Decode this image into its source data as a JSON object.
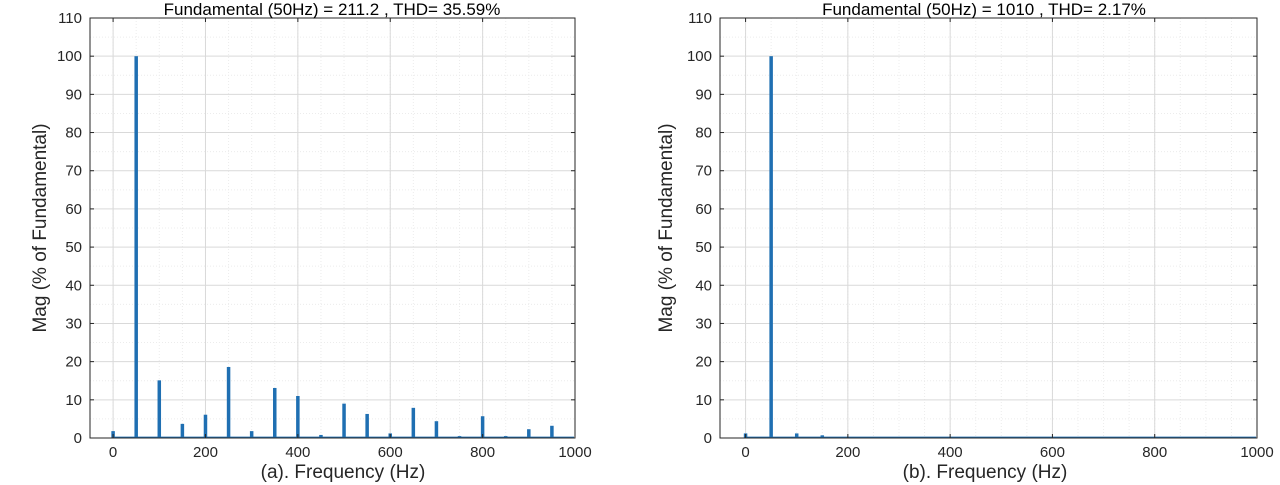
{
  "chart_data": [
    {
      "type": "bar",
      "title": "Fundamental (50Hz) = 211.2 , THD= 35.59%",
      "xlabel": "(a). Frequency (Hz)",
      "ylabel": "Mag (% of Fundamental)",
      "xlim": [
        -50,
        1000
      ],
      "ylim": [
        0,
        110
      ],
      "xticks": [
        0,
        200,
        400,
        600,
        800,
        1000
      ],
      "yticks": [
        0,
        10,
        20,
        30,
        40,
        50,
        60,
        70,
        80,
        90,
        100,
        110
      ],
      "grid": true,
      "minor_grid": true,
      "bar_color": "#1f6fb2",
      "x": [
        0,
        50,
        100,
        150,
        200,
        250,
        300,
        350,
        400,
        450,
        500,
        550,
        600,
        650,
        700,
        750,
        800,
        850,
        900,
        950
      ],
      "values": [
        1.8,
        100,
        15.1,
        3.7,
        6.1,
        18.6,
        1.8,
        13.1,
        11.0,
        0.8,
        9.0,
        6.3,
        1.2,
        7.9,
        4.4,
        0.5,
        5.7,
        0.5,
        2.3,
        3.2
      ]
    },
    {
      "type": "bar",
      "title": "Fundamental (50Hz) = 1010 , THD= 2.17%",
      "xlabel": "(b). Frequency (Hz)",
      "ylabel": "Mag (% of Fundamental)",
      "xlim": [
        -50,
        1000
      ],
      "ylim": [
        0,
        110
      ],
      "xticks": [
        0,
        200,
        400,
        600,
        800,
        1000
      ],
      "yticks": [
        0,
        10,
        20,
        30,
        40,
        50,
        60,
        70,
        80,
        90,
        100,
        110
      ],
      "grid": true,
      "minor_grid": true,
      "bar_color": "#1f6fb2",
      "x": [
        0,
        50,
        100,
        150
      ],
      "values": [
        1.2,
        100,
        1.2,
        0.7
      ]
    }
  ]
}
